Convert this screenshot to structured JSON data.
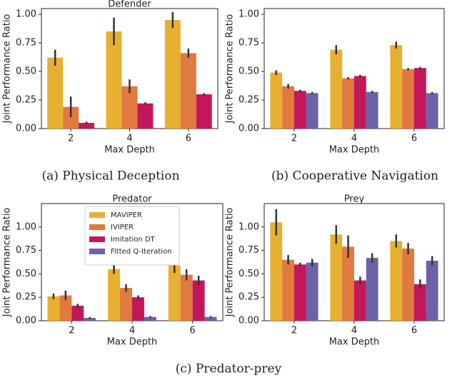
{
  "chart_data": [
    {
      "type": "bar",
      "title": "Defender",
      "xlabel": "Max Depth",
      "ylabel": "Joint Performance Ratio",
      "categories": [
        "2",
        "4",
        "6"
      ],
      "ylim": [
        0,
        1.05
      ],
      "yticks": [
        {
          "value": 0,
          "label": "0.00"
        },
        {
          "value": 0.25,
          "label": "0.25"
        },
        {
          "value": 0.5,
          "label": "0.50"
        },
        {
          "value": 0.75,
          "label": "0.75"
        },
        {
          "value": 1,
          "label": "1.00"
        }
      ],
      "series": [
        {
          "color": "#e8b030",
          "values": [
            0.62,
            0.85,
            0.95
          ],
          "errors": [
            0.07,
            0.12,
            0.07
          ]
        },
        {
          "color": "#e07a3f",
          "values": [
            0.19,
            0.37,
            0.66
          ],
          "errors": [
            0.09,
            0.06,
            0.04
          ]
        },
        {
          "color": "#c2185b",
          "values": [
            0.05,
            0.22,
            0.3
          ],
          "errors": [
            0.01,
            0.01,
            0.01
          ]
        }
      ]
    },
    {
      "type": "bar",
      "xlabel": "Max Depth",
      "ylabel": "Joint Performance Ratio",
      "categories": [
        "2",
        "4",
        "6"
      ],
      "ylim": [
        0,
        1.05
      ],
      "yticks": [
        {
          "value": 0,
          "label": "0.00"
        },
        {
          "value": 0.25,
          "label": "0.25"
        },
        {
          "value": 0.5,
          "label": "0.50"
        },
        {
          "value": 0.75,
          "label": "0.75"
        },
        {
          "value": 1,
          "label": "1.00"
        }
      ],
      "series": [
        {
          "color": "#e8b030",
          "values": [
            0.49,
            0.69,
            0.73
          ],
          "errors": [
            0.02,
            0.04,
            0.03
          ]
        },
        {
          "color": "#e07a3f",
          "values": [
            0.37,
            0.44,
            0.52
          ],
          "errors": [
            0.02,
            0.01,
            0.01
          ]
        },
        {
          "color": "#c2185b",
          "values": [
            0.33,
            0.46,
            0.53
          ],
          "errors": [
            0.01,
            0.01,
            0.01
          ]
        },
        {
          "color": "#6c63a6",
          "values": [
            0.31,
            0.32,
            0.31
          ],
          "errors": [
            0.01,
            0.01,
            0.01
          ]
        }
      ]
    },
    {
      "type": "bar",
      "title": "Predator",
      "xlabel": "Max Depth",
      "ylabel": "Joint Performance Ratio",
      "categories": [
        "2",
        "4",
        "6"
      ],
      "ylim": [
        0,
        1.25
      ],
      "legend": "upper center",
      "yticks": [
        {
          "value": 0,
          "label": "0.00"
        },
        {
          "value": 0.25,
          "label": "0.25"
        },
        {
          "value": 0.5,
          "label": "0.50"
        },
        {
          "value": 0.75,
          "label": "0.75"
        },
        {
          "value": 1,
          "label": "1.00"
        }
      ],
      "series": [
        {
          "name": "MAVIPER",
          "color": "#e8b030",
          "values": [
            0.26,
            0.55,
            0.59
          ],
          "errors": [
            0.03,
            0.05,
            0.08
          ]
        },
        {
          "name": "IVIPER",
          "color": "#e07a3f",
          "values": [
            0.27,
            0.35,
            0.49
          ],
          "errors": [
            0.05,
            0.04,
            0.06
          ]
        },
        {
          "name": "Imitation DT",
          "color": "#c2185b",
          "values": [
            0.16,
            0.25,
            0.43
          ],
          "errors": [
            0.02,
            0.02,
            0.05
          ]
        },
        {
          "name": "Fitted Q-Iteration",
          "color": "#6c63a6",
          "values": [
            0.03,
            0.04,
            0.04
          ],
          "errors": [
            0.01,
            0.01,
            0.01
          ]
        }
      ]
    },
    {
      "type": "bar",
      "title": "Prey",
      "xlabel": "Max Depth",
      "ylabel": "Joint Performance Ratio",
      "categories": [
        "2",
        "4",
        "6"
      ],
      "ylim": [
        0,
        1.25
      ],
      "yticks": [
        {
          "value": 0,
          "label": "0.00"
        },
        {
          "value": 0.25,
          "label": "0.25"
        },
        {
          "value": 0.5,
          "label": "0.50"
        },
        {
          "value": 0.75,
          "label": "0.75"
        },
        {
          "value": 1,
          "label": "1.00"
        }
      ],
      "series": [
        {
          "color": "#e8b030",
          "values": [
            1.05,
            0.92,
            0.85
          ],
          "errors": [
            0.14,
            0.1,
            0.07
          ]
        },
        {
          "color": "#e07a3f",
          "values": [
            0.65,
            0.79,
            0.77
          ],
          "errors": [
            0.05,
            0.12,
            0.06
          ]
        },
        {
          "color": "#c2185b",
          "values": [
            0.6,
            0.43,
            0.39
          ],
          "errors": [
            0.02,
            0.04,
            0.05
          ]
        },
        {
          "color": "#6c63a6",
          "values": [
            0.62,
            0.67,
            0.64
          ],
          "errors": [
            0.04,
            0.05,
            0.05
          ]
        }
      ]
    }
  ],
  "captions": [
    "(a) Physical Deception",
    "(b) Cooperative Navigation",
    "(c) Predator-prey"
  ]
}
